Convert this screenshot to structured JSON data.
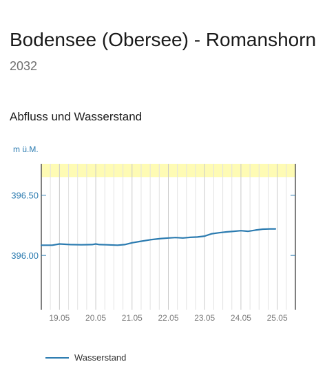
{
  "header": {
    "station_name": "Bodensee (Obersee) - Romanshorn",
    "station_id": "2032"
  },
  "section": {
    "title": "Abfluss und Wasserstand"
  },
  "colors": {
    "series": "#2b7bb0",
    "axis_text": "#2b7bb0",
    "band": "#fefbb4",
    "grid_major": "#c9c9c9",
    "grid_minor": "#e2e2e2",
    "frame": "#555555"
  },
  "chart_data": {
    "type": "line",
    "ylabel": "m ü.M.",
    "xlabel": "",
    "ylim": [
      395.55,
      396.76
    ],
    "xlim": [
      18.5,
      25.5
    ],
    "yticks": [
      {
        "value": 396.0,
        "label": "396.00"
      },
      {
        "value": 396.5,
        "label": "396.50"
      }
    ],
    "xticks": [
      {
        "value": 19,
        "label": "19.05"
      },
      {
        "value": 20,
        "label": "20.05"
      },
      {
        "value": 21,
        "label": "21.05"
      },
      {
        "value": 22,
        "label": "22.05"
      },
      {
        "value": 23,
        "label": "23.05"
      },
      {
        "value": 24,
        "label": "24.05"
      },
      {
        "value": 25,
        "label": "25.05"
      }
    ],
    "band": {
      "from": 396.65,
      "to": 396.76
    },
    "grid": true,
    "legend_position": "bottom-left",
    "series": [
      {
        "name": "Wasserstand",
        "x": [
          18.5,
          18.8,
          19.0,
          19.3,
          19.6,
          19.9,
          20.0,
          20.1,
          20.3,
          20.6,
          20.8,
          21.0,
          21.2,
          21.5,
          21.8,
          22.0,
          22.2,
          22.4,
          22.6,
          22.8,
          23.0,
          23.2,
          23.4,
          23.6,
          23.8,
          24.0,
          24.2,
          24.4,
          24.6,
          24.8,
          24.95
        ],
        "values": [
          396.085,
          396.085,
          396.095,
          396.09,
          396.088,
          396.09,
          396.095,
          396.09,
          396.088,
          396.085,
          396.09,
          396.105,
          396.115,
          396.13,
          396.14,
          396.145,
          396.148,
          396.145,
          396.15,
          396.153,
          396.16,
          396.18,
          396.188,
          396.195,
          396.2,
          396.205,
          396.2,
          396.21,
          396.218,
          396.22,
          396.22
        ]
      }
    ]
  }
}
